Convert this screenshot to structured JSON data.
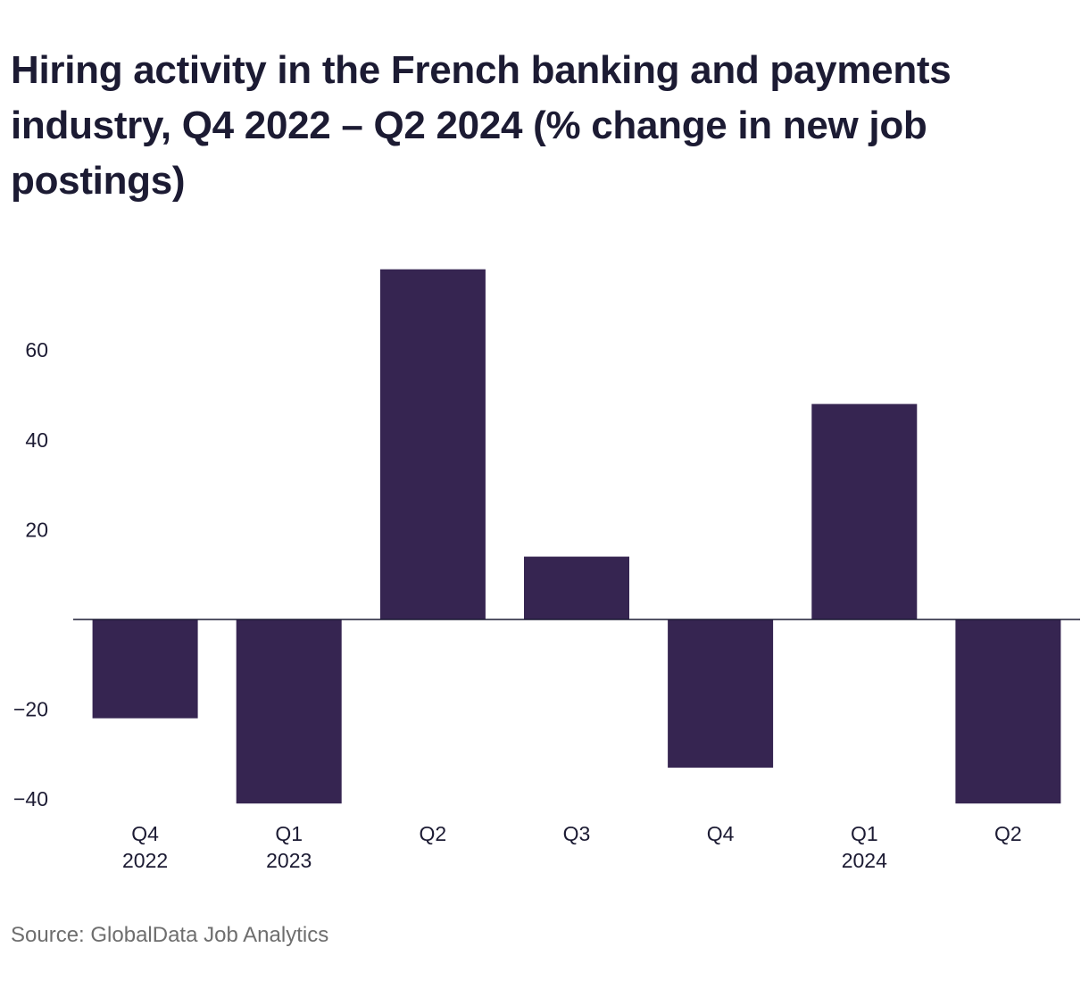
{
  "chart_data": {
    "type": "bar",
    "title": "Hiring activity in the French banking and payments industry, Q4 2022 – Q2 2024 (% change in new job postings)",
    "categories": [
      {
        "line1": "Q4",
        "line2": "2022"
      },
      {
        "line1": "Q1",
        "line2": "2023"
      },
      {
        "line1": "Q2",
        "line2": ""
      },
      {
        "line1": "Q3",
        "line2": ""
      },
      {
        "line1": "Q4",
        "line2": ""
      },
      {
        "line1": "Q1",
        "line2": "2024"
      },
      {
        "line1": "Q2",
        "line2": ""
      }
    ],
    "values": [
      -22,
      -41,
      78,
      14,
      -33,
      48,
      -41
    ],
    "yticks": [
      {
        "value": 60,
        "label": "60"
      },
      {
        "value": 40,
        "label": "40"
      },
      {
        "value": 20,
        "label": "20"
      },
      {
        "value": -20,
        "label": "−20"
      },
      {
        "value": -40,
        "label": "−40"
      }
    ],
    "ylim": [
      -42,
      80
    ],
    "xlabel": "",
    "ylabel": "",
    "grid": false,
    "zero_line": true,
    "bar_color": "#362551",
    "watermark": "GlobalData",
    "source": "Source: GlobalData Job Analytics"
  }
}
